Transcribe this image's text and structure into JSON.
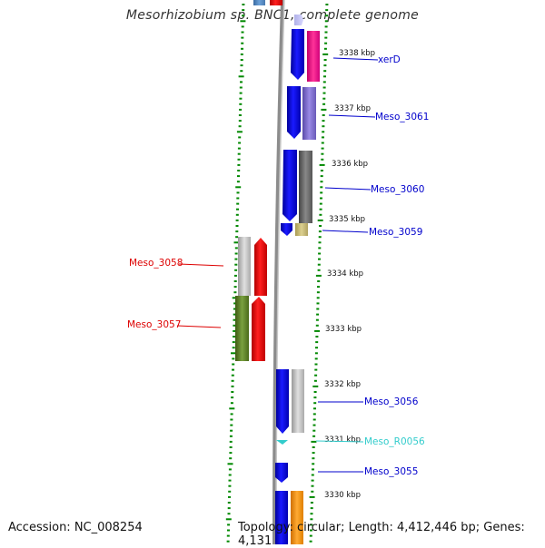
{
  "title": "Mesorhizobium sp. BNC1, complete genome",
  "footer": {
    "accession": "Accession: NC_008254",
    "topology": "Topology: circular; Length: 4,412,446 bp; Genes: 4,131"
  },
  "colors": {
    "forward_blue": "#0000ff",
    "reverse_red": "#ff0000",
    "label_blue": "#0000cc",
    "label_red": "#dd0000",
    "label_cyan": "#33cccc",
    "tick_green": "#008800"
  },
  "ticks": [
    "3338 kbp",
    "3337 kbp",
    "3336 kbp",
    "3335 kbp",
    "3334 kbp",
    "3333 kbp",
    "3332 kbp",
    "3331 kbp",
    "3330 kbp"
  ],
  "genes_right": [
    "xerD",
    "Meso_3061",
    "Meso_3060",
    "Meso_3059",
    "Meso_3056",
    "Meso_R0056",
    "Meso_3055"
  ],
  "genes_left": [
    "Meso_3058",
    "Meso_3057"
  ]
}
